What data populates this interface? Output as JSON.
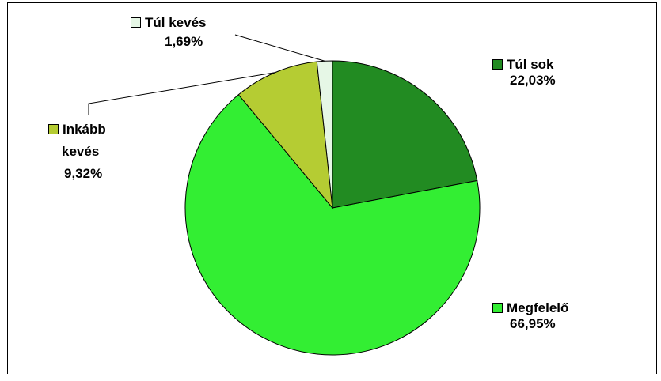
{
  "chart_data": {
    "type": "pie",
    "slices": [
      {
        "name": "Túl sok",
        "value": 22.03,
        "display": "22,03%",
        "color": "#228b22"
      },
      {
        "name": "Megfelelő",
        "value": 66.95,
        "display": "66,95%",
        "color": "#33ee33"
      },
      {
        "name": "Inkább kevés",
        "value": 9.32,
        "display": "9,32%",
        "color": "#b5cc33"
      },
      {
        "name": "Túl kevés",
        "value": 1.69,
        "display": "1,69%",
        "color": "#e6f7e6"
      }
    ],
    "labels": {
      "tul_sok": {
        "name": "Túl sok",
        "pct": "22,03%"
      },
      "megfelelo": {
        "name": "Megfelelő",
        "pct": "66,95%"
      },
      "inkabb_keves": {
        "name_line1": "Inkább",
        "name_line2": "kevés",
        "pct": "9,32%"
      },
      "tul_keves": {
        "name": "Túl kevés",
        "pct": "1,69%"
      }
    }
  }
}
